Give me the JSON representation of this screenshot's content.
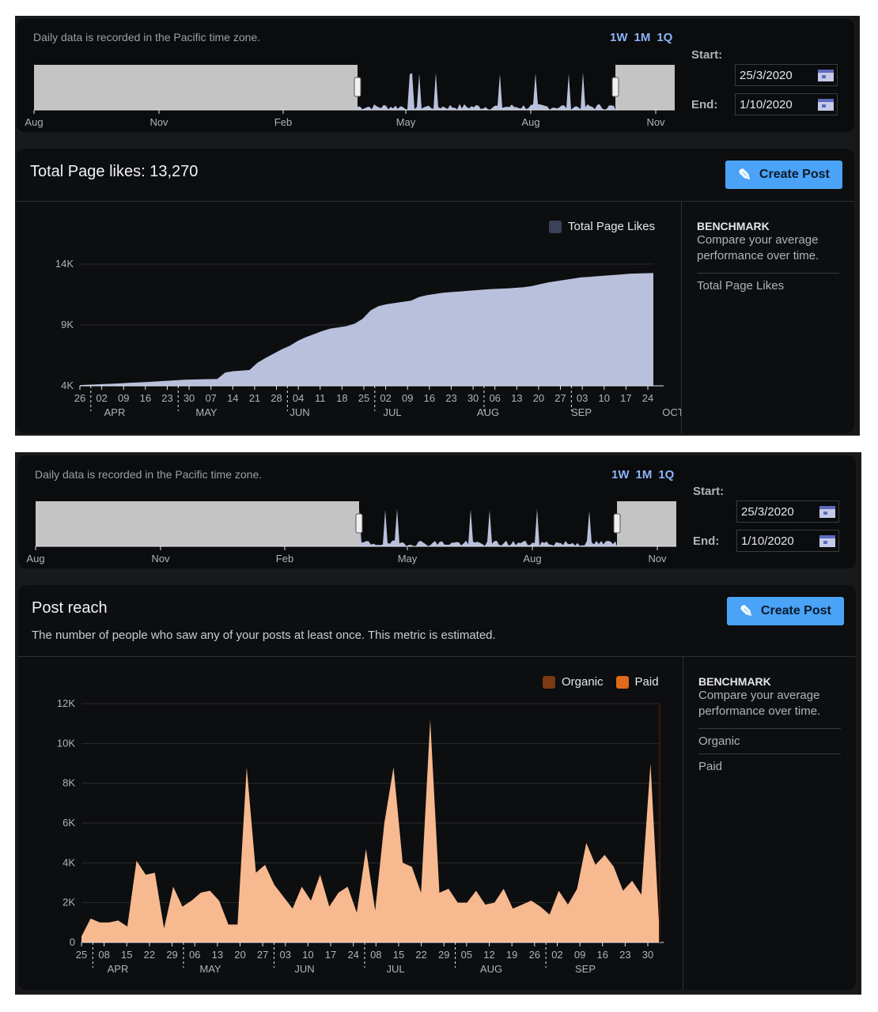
{
  "top": {
    "range": {
      "timezone_note": "Daily data is recorded in the Pacific time zone.",
      "quick_ranges": [
        "1W",
        "1M",
        "1Q"
      ],
      "start_label": "Start:",
      "start_value": "25/3/2020",
      "end_label": "End:",
      "end_value": "1/10/2020",
      "months": [
        "Aug",
        "Nov",
        "Feb",
        "May",
        "Aug",
        "Nov"
      ]
    },
    "card": {
      "title": "Total Page likes: 13,270",
      "create_label": "Create Post",
      "legend": [
        "Total Page Likes"
      ],
      "benchmark_title": "BENCHMARK",
      "benchmark_desc": "Compare your average performance over time.",
      "benchmark_items": [
        "Total Page Likes"
      ]
    }
  },
  "bottom": {
    "range": {
      "timezone_note": "Daily data is recorded in the Pacific time zone.",
      "quick_ranges": [
        "1W",
        "1M",
        "1Q"
      ],
      "start_label": "Start:",
      "start_value": "25/3/2020",
      "end_label": "End:",
      "end_value": "1/10/2020",
      "months": [
        "Aug",
        "Nov",
        "Feb",
        "May",
        "Aug",
        "Nov"
      ]
    },
    "card": {
      "title": "Post reach",
      "subtitle": "The number of people who saw any of your posts at least once. This metric is estimated.",
      "create_label": "Create Post",
      "legend": [
        "Organic",
        "Paid"
      ],
      "benchmark_title": "BENCHMARK",
      "benchmark_desc": "Compare your average performance over time.",
      "benchmark_items": [
        "Organic",
        "Paid"
      ]
    }
  },
  "colors": {
    "likes_fill": "#b8c0dc",
    "organic": "#7a3a12",
    "paid": "#e0691c",
    "reach_fill": "#f7b98f",
    "accent": "#4aa3f7"
  },
  "chart_data": [
    {
      "type": "area",
      "series": [
        {
          "name": "Total Page Likes",
          "values": [
            4060,
            4090,
            4120,
            4140,
            4170,
            4200,
            4240,
            4280,
            4300,
            4340,
            4380,
            4420,
            4460,
            4500,
            4520,
            4540,
            4550,
            4560,
            5100,
            5200,
            5250,
            5300,
            5900,
            6300,
            6650,
            7000,
            7300,
            7700,
            8000,
            8250,
            8500,
            8700,
            8800,
            8900,
            9100,
            9500,
            10200,
            10550,
            10700,
            10800,
            10900,
            11000,
            11300,
            11450,
            11550,
            11650,
            11700,
            11750,
            11800,
            11850,
            11900,
            11950,
            11980,
            12000,
            12050,
            12100,
            12200,
            12350,
            12500,
            12600,
            12700,
            12800,
            12900,
            12950,
            13000,
            13050,
            13100,
            13150,
            13200,
            13230,
            13250,
            13270
          ]
        }
      ],
      "yticks": [
        "4K",
        "9K",
        "14K"
      ],
      "ylim": [
        4000,
        14000
      ],
      "x_tick_labels": [
        "26",
        "02",
        "09",
        "16",
        "23",
        "30",
        "07",
        "14",
        "21",
        "28",
        "04",
        "11",
        "18",
        "25",
        "02",
        "09",
        "16",
        "23",
        "30",
        "06",
        "13",
        "20",
        "27",
        "03",
        "10",
        "17",
        "24"
      ],
      "months": [
        "APR",
        "MAY",
        "JUN",
        "JUL",
        "AUG",
        "SEP",
        "OCT"
      ]
    },
    {
      "type": "area",
      "series": [
        {
          "name": "Paid",
          "values": [
            300,
            1200,
            1000,
            1000,
            1100,
            800,
            4100,
            3400,
            3500,
            700,
            2800,
            1800,
            2100,
            2500,
            2600,
            2100,
            900,
            900,
            8800,
            3500,
            3900,
            2900,
            2300,
            1700,
            2800,
            2100,
            3400,
            1800,
            2500,
            2800,
            1500,
            4700,
            1600,
            6000,
            8800,
            4000,
            3800,
            2500,
            11200,
            2500,
            2700,
            2000,
            2000,
            2600,
            1900,
            2000,
            2700,
            1700,
            1900,
            2100,
            1800,
            1400,
            2600,
            1900,
            2700,
            5000,
            3900,
            4400,
            3800,
            2600,
            3100,
            2400,
            9000,
            300
          ]
        }
      ],
      "yticks": [
        "0",
        "2K",
        "4K",
        "6K",
        "8K",
        "10K",
        "12K"
      ],
      "ylim": [
        0,
        12000
      ],
      "x_tick_labels": [
        "25",
        "08",
        "15",
        "22",
        "29",
        "06",
        "13",
        "20",
        "27",
        "03",
        "10",
        "17",
        "24",
        "08",
        "15",
        "22",
        "29",
        "05",
        "12",
        "19",
        "26",
        "02",
        "09",
        "16",
        "23",
        "30"
      ],
      "months": [
        "APR",
        "MAY",
        "JUN",
        "JUL",
        "AUG",
        "SEP"
      ]
    }
  ]
}
